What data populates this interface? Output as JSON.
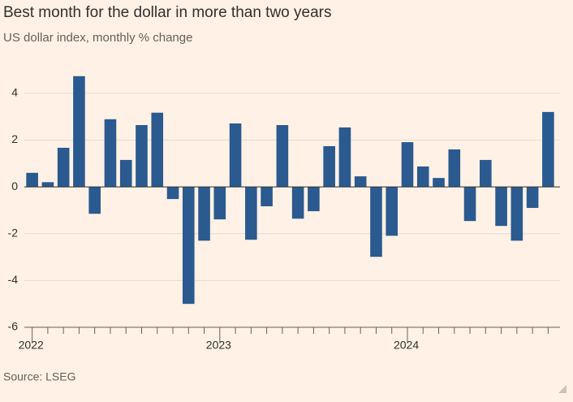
{
  "chart_data": {
    "type": "bar",
    "title": "Best month for the dollar in more than two years",
    "subtitle": "US dollar index, monthly % change",
    "source": "Source: LSEG",
    "categories": [
      "2022",
      null,
      null,
      null,
      null,
      null,
      null,
      null,
      null,
      null,
      null,
      null,
      "2023",
      null,
      null,
      null,
      null,
      null,
      null,
      null,
      null,
      null,
      null,
      null,
      "2024",
      null,
      null,
      null,
      null,
      null,
      null,
      null,
      null,
      null
    ],
    "values": [
      0.6,
      0.2,
      1.67,
      4.73,
      -1.15,
      2.89,
      1.15,
      2.64,
      3.17,
      -0.52,
      -5.0,
      -2.3,
      -1.39,
      2.71,
      -2.26,
      -0.83,
      2.64,
      -1.36,
      -1.04,
      1.74,
      2.54,
      0.45,
      -2.99,
      -2.09,
      1.91,
      0.87,
      0.38,
      1.6,
      -1.46,
      1.15,
      -1.67,
      -2.3,
      -0.9,
      3.2
    ],
    "color": "#2a5a8f",
    "ylim": [
      -6,
      5
    ],
    "yticks": [
      -6,
      -4,
      -2,
      0,
      2,
      4
    ],
    "grid": true
  }
}
